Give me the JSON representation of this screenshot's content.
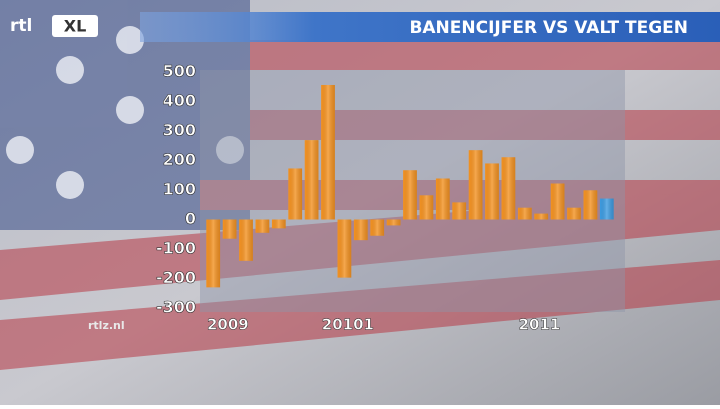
{
  "logo": {
    "left": "rtl",
    "right": "XL"
  },
  "site": "rtlz.nl",
  "chart_data": {
    "type": "bar",
    "title": "BANENCIJFER VS VALT TEGEN",
    "categories": [
      "2009",
      null,
      null,
      null,
      null,
      null,
      null,
      "20101",
      null,
      null,
      null,
      null,
      null,
      null,
      null,
      null,
      null,
      null,
      null,
      "2011",
      null,
      null,
      null,
      null,
      null
    ],
    "values": [
      -230,
      -65,
      -140,
      -45,
      -30,
      173,
      269,
      456,
      -197,
      -70,
      -55,
      -20,
      167,
      82,
      139,
      58,
      235,
      190,
      211,
      40,
      20,
      122,
      40,
      99,
      71
    ],
    "colors": [
      "#f39222",
      "#f39222",
      "#f39222",
      "#f39222",
      "#f39222",
      "#f39222",
      "#f39222",
      "#f39222",
      "#f39222",
      "#f39222",
      "#f39222",
      "#f39222",
      "#f39222",
      "#f39222",
      "#f39222",
      "#f39222",
      "#f39222",
      "#f39222",
      "#f39222",
      "#f39222",
      "#f39222",
      "#f39222",
      "#f39222",
      "#f39222",
      "#3d9be0"
    ],
    "ylim": [
      -300,
      500
    ],
    "yticks": [
      -300,
      -200,
      -100,
      0,
      100,
      200,
      300,
      400,
      500
    ]
  }
}
